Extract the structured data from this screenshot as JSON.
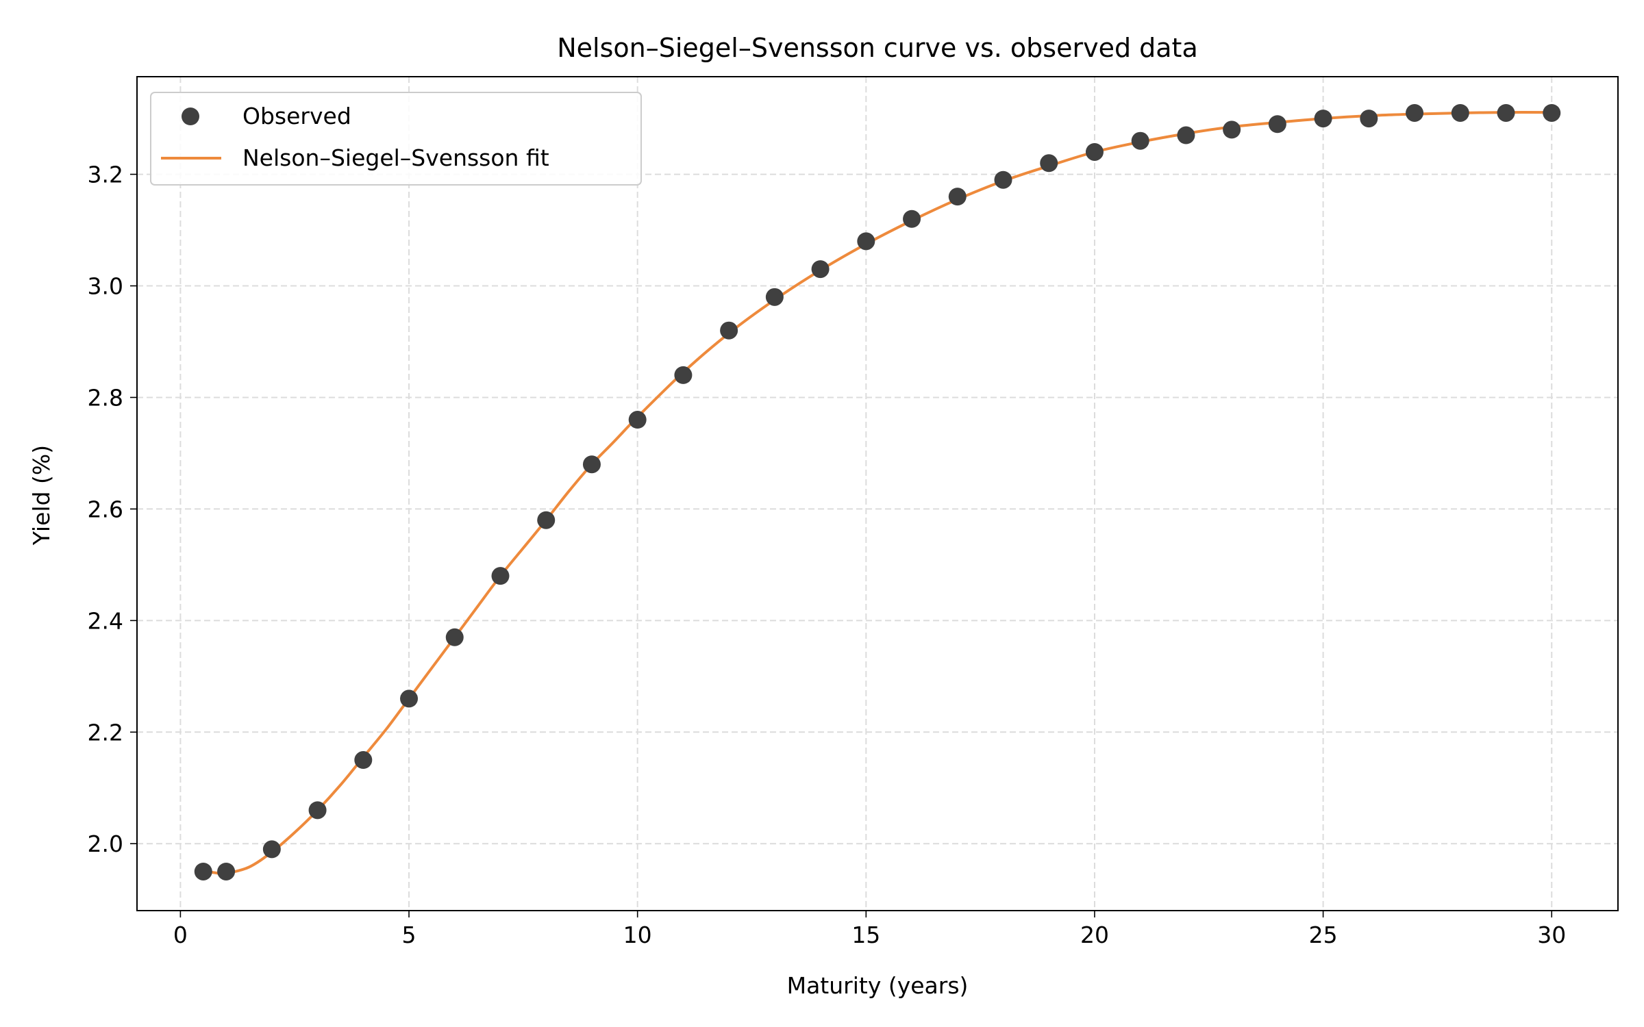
{
  "chart_data": {
    "type": "scatter",
    "title": "Nelson–Siegel–Svensson curve vs. observed data",
    "xlabel": "Maturity (years)",
    "ylabel": "Yield (%)",
    "xlim": [
      -0.95,
      31.45
    ],
    "ylim": [
      1.88,
      3.375
    ],
    "xticks": [
      0,
      5,
      10,
      15,
      20,
      25,
      30
    ],
    "xtick_labels": [
      "0",
      "5",
      "10",
      "15",
      "20",
      "25",
      "30"
    ],
    "yticks": [
      2.0,
      2.2,
      2.4,
      2.6,
      2.8,
      3.0,
      3.2
    ],
    "ytick_labels": [
      "2.0",
      "2.2",
      "2.4",
      "2.6",
      "2.8",
      "3.0",
      "3.2"
    ],
    "grid": true,
    "legend_position": "top-left",
    "series": [
      {
        "name": "Observed",
        "kind": "scatter",
        "color": "#404040",
        "x": [
          0.5,
          1,
          2,
          3,
          4,
          5,
          6,
          7,
          8,
          9,
          10,
          11,
          12,
          13,
          14,
          15,
          16,
          17,
          18,
          19,
          20,
          21,
          22,
          23,
          24,
          25,
          26,
          27,
          28,
          29,
          30
        ],
        "y": [
          1.95,
          1.95,
          1.99,
          2.06,
          2.15,
          2.26,
          2.37,
          2.48,
          2.58,
          2.68,
          2.76,
          2.84,
          2.92,
          2.98,
          3.03,
          3.08,
          3.12,
          3.16,
          3.19,
          3.22,
          3.24,
          3.26,
          3.27,
          3.28,
          3.29,
          3.3,
          3.3,
          3.31,
          3.31,
          3.31,
          3.31
        ]
      },
      {
        "name": "Nelson–Siegel–Svensson fit",
        "kind": "line",
        "color": "#ee8a3c",
        "x": [
          0.5,
          0.75,
          1,
          1.5,
          2,
          2.5,
          3,
          3.5,
          4,
          4.5,
          5,
          5.5,
          6,
          6.5,
          7,
          7.5,
          8,
          8.5,
          9,
          9.5,
          10,
          11,
          12,
          13,
          14,
          15,
          16,
          17,
          18,
          19,
          20,
          21,
          22,
          23,
          24,
          25,
          26,
          27,
          28,
          29,
          30
        ],
        "y": [
          1.952,
          1.948,
          1.947,
          1.958,
          1.985,
          2.02,
          2.06,
          2.105,
          2.155,
          2.205,
          2.26,
          2.315,
          2.37,
          2.425,
          2.48,
          2.53,
          2.58,
          2.632,
          2.68,
          2.722,
          2.765,
          2.845,
          2.915,
          2.975,
          3.028,
          3.075,
          3.117,
          3.155,
          3.188,
          3.215,
          3.24,
          3.258,
          3.273,
          3.285,
          3.293,
          3.3,
          3.305,
          3.308,
          3.31,
          3.311,
          3.311
        ]
      }
    ]
  }
}
